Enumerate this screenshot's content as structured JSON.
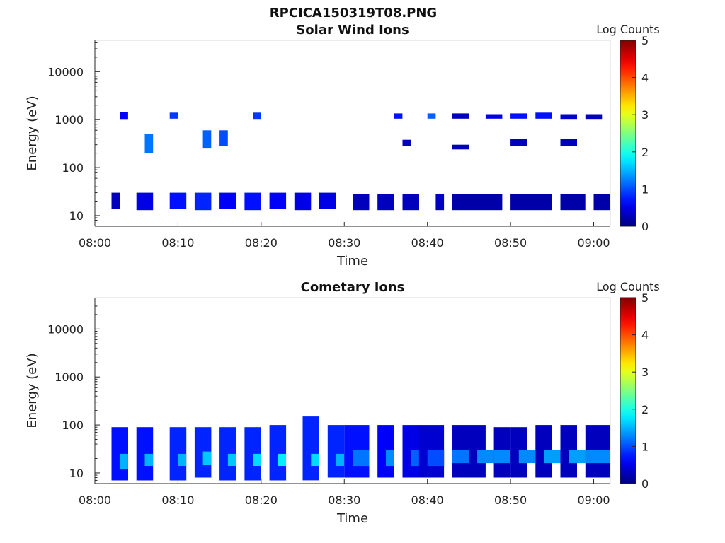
{
  "figure_title": "RPCICA150319T08.PNG",
  "colorbar": {
    "label": "Log Counts",
    "ticks": [
      "0",
      "1",
      "2",
      "3",
      "4",
      "5"
    ],
    "range": [
      0,
      5
    ],
    "colormap": "jet"
  },
  "chart_data": [
    {
      "type": "heatmap",
      "title": "Solar Wind Ions",
      "xlabel": "Time",
      "ylabel": "Energy (eV)",
      "x_scale": "linear",
      "y_scale": "log",
      "xlim": [
        "08:00",
        "09:02"
      ],
      "ylim": [
        6,
        45000
      ],
      "x_ticks": [
        "08:00",
        "08:10",
        "08:20",
        "08:30",
        "08:40",
        "08:50",
        "09:00"
      ],
      "y_ticks": [
        "10",
        "100",
        "1000",
        "10000"
      ],
      "color_scale": "Log Counts",
      "cells": [
        {
          "t0": "08:02",
          "t1": "08:03",
          "e0": 14,
          "e1": 30,
          "v": 0.3
        },
        {
          "t0": "08:03",
          "t1": "08:04",
          "e0": 1000,
          "e1": 1450,
          "v": 0.6
        },
        {
          "t0": "08:05",
          "t1": "08:07",
          "e0": 13,
          "e1": 30,
          "v": 0.5
        },
        {
          "t0": "08:06",
          "t1": "08:07",
          "e0": 200,
          "e1": 500,
          "v": 1.2
        },
        {
          "t0": "08:09",
          "t1": "08:11",
          "e0": 14,
          "e1": 30,
          "v": 0.7
        },
        {
          "t0": "08:09",
          "t1": "08:10",
          "e0": 1050,
          "e1": 1400,
          "v": 0.9
        },
        {
          "t0": "08:12",
          "t1": "08:14",
          "e0": 13,
          "e1": 30,
          "v": 0.8
        },
        {
          "t0": "08:13",
          "t1": "08:14",
          "e0": 250,
          "e1": 600,
          "v": 1.1
        },
        {
          "t0": "08:15",
          "t1": "08:17",
          "e0": 14,
          "e1": 30,
          "v": 0.6
        },
        {
          "t0": "08:15",
          "t1": "08:16",
          "e0": 280,
          "e1": 600,
          "v": 1.0
        },
        {
          "t0": "08:18",
          "t1": "08:20",
          "e0": 13,
          "e1": 30,
          "v": 0.7
        },
        {
          "t0": "08:19",
          "t1": "08:20",
          "e0": 1000,
          "e1": 1400,
          "v": 0.9
        },
        {
          "t0": "08:21",
          "t1": "08:23",
          "e0": 14,
          "e1": 30,
          "v": 0.6
        },
        {
          "t0": "08:24",
          "t1": "08:26",
          "e0": 13,
          "e1": 30,
          "v": 0.5
        },
        {
          "t0": "08:27",
          "t1": "08:29",
          "e0": 14,
          "e1": 30,
          "v": 0.5
        },
        {
          "t0": "08:31",
          "t1": "08:33",
          "e0": 13,
          "e1": 28,
          "v": 0.3
        },
        {
          "t0": "08:34",
          "t1": "08:36",
          "e0": 13,
          "e1": 28,
          "v": 0.3
        },
        {
          "t0": "08:36",
          "t1": "08:37",
          "e0": 1050,
          "e1": 1350,
          "v": 0.7
        },
        {
          "t0": "08:37",
          "t1": "08:38",
          "e0": 280,
          "e1": 380,
          "v": 0.3
        },
        {
          "t0": "08:37",
          "t1": "08:39",
          "e0": 13,
          "e1": 28,
          "v": 0.3
        },
        {
          "t0": "08:40",
          "t1": "08:41",
          "e0": 1050,
          "e1": 1350,
          "v": 1.1
        },
        {
          "t0": "08:41",
          "t1": "08:42",
          "e0": 13,
          "e1": 28,
          "v": 0.3
        },
        {
          "t0": "08:43",
          "t1": "08:45",
          "e0": 1050,
          "e1": 1350,
          "v": 0.3
        },
        {
          "t0": "08:43",
          "t1": "08:45",
          "e0": 240,
          "e1": 300,
          "v": 0.3
        },
        {
          "t0": "08:43",
          "t1": "08:49",
          "e0": 13,
          "e1": 28,
          "v": 0.2
        },
        {
          "t0": "08:47",
          "t1": "08:49",
          "e0": 1050,
          "e1": 1300,
          "v": 0.5
        },
        {
          "t0": "08:50",
          "t1": "08:52",
          "e0": 1050,
          "e1": 1350,
          "v": 0.7
        },
        {
          "t0": "08:50",
          "t1": "08:52",
          "e0": 280,
          "e1": 400,
          "v": 0.3
        },
        {
          "t0": "08:50",
          "t1": "08:55",
          "e0": 13,
          "e1": 28,
          "v": 0.2
        },
        {
          "t0": "08:53",
          "t1": "08:55",
          "e0": 1050,
          "e1": 1400,
          "v": 0.7
        },
        {
          "t0": "08:56",
          "t1": "08:58",
          "e0": 1000,
          "e1": 1300,
          "v": 0.4
        },
        {
          "t0": "08:56",
          "t1": "08:58",
          "e0": 280,
          "e1": 400,
          "v": 0.3
        },
        {
          "t0": "08:56",
          "t1": "08:59",
          "e0": 13,
          "e1": 28,
          "v": 0.2
        },
        {
          "t0": "08:59",
          "t1": "09:01",
          "e0": 1000,
          "e1": 1300,
          "v": 0.3
        },
        {
          "t0": "09:00",
          "t1": "09:02",
          "e0": 13,
          "e1": 28,
          "v": 0.2
        }
      ]
    },
    {
      "type": "heatmap",
      "title": "Cometary Ions",
      "xlabel": "Time",
      "ylabel": "Energy (eV)",
      "x_scale": "linear",
      "y_scale": "log",
      "xlim": [
        "08:00",
        "09:02"
      ],
      "ylim": [
        6,
        45000
      ],
      "x_ticks": [
        "08:00",
        "08:10",
        "08:20",
        "08:30",
        "08:40",
        "08:50",
        "09:00"
      ],
      "y_ticks": [
        "10",
        "100",
        "1000",
        "10000"
      ],
      "color_scale": "Log Counts",
      "cells": [
        {
          "t0": "08:02",
          "t1": "08:04",
          "e0": 7,
          "e1": 90,
          "v": 0.7
        },
        {
          "t0": "08:03",
          "t1": "08:04",
          "e0": 12,
          "e1": 25,
          "v": 1.5
        },
        {
          "t0": "08:05",
          "t1": "08:07",
          "e0": 7,
          "e1": 90,
          "v": 0.7
        },
        {
          "t0": "08:06",
          "t1": "08:07",
          "e0": 14,
          "e1": 25,
          "v": 1.5
        },
        {
          "t0": "08:09",
          "t1": "08:11",
          "e0": 7,
          "e1": 90,
          "v": 0.8
        },
        {
          "t0": "08:10",
          "t1": "08:11",
          "e0": 14,
          "e1": 25,
          "v": 1.5
        },
        {
          "t0": "08:12",
          "t1": "08:14",
          "e0": 8,
          "e1": 90,
          "v": 0.8
        },
        {
          "t0": "08:13",
          "t1": "08:14",
          "e0": 15,
          "e1": 28,
          "v": 1.6
        },
        {
          "t0": "08:15",
          "t1": "08:17",
          "e0": 7,
          "e1": 90,
          "v": 0.8
        },
        {
          "t0": "08:16",
          "t1": "08:17",
          "e0": 14,
          "e1": 25,
          "v": 1.6
        },
        {
          "t0": "08:18",
          "t1": "08:20",
          "e0": 7,
          "e1": 90,
          "v": 0.8
        },
        {
          "t0": "08:19",
          "t1": "08:20",
          "e0": 14,
          "e1": 25,
          "v": 1.7
        },
        {
          "t0": "08:21",
          "t1": "08:23",
          "e0": 7,
          "e1": 100,
          "v": 0.8
        },
        {
          "t0": "08:22",
          "t1": "08:23",
          "e0": 14,
          "e1": 25,
          "v": 1.8
        },
        {
          "t0": "08:25",
          "t1": "08:27",
          "e0": 7,
          "e1": 150,
          "v": 0.8
        },
        {
          "t0": "08:26",
          "t1": "08:27",
          "e0": 14,
          "e1": 25,
          "v": 1.7
        },
        {
          "t0": "08:28",
          "t1": "08:30",
          "e0": 8,
          "e1": 100,
          "v": 0.8
        },
        {
          "t0": "08:29",
          "t1": "08:30",
          "e0": 14,
          "e1": 25,
          "v": 1.5
        },
        {
          "t0": "08:30",
          "t1": "08:33",
          "e0": 8,
          "e1": 100,
          "v": 0.7
        },
        {
          "t0": "08:31",
          "t1": "08:33",
          "e0": 14,
          "e1": 30,
          "v": 1.2
        },
        {
          "t0": "08:34",
          "t1": "08:36",
          "e0": 8,
          "e1": 100,
          "v": 0.6
        },
        {
          "t0": "08:35",
          "t1": "08:36",
          "e0": 14,
          "e1": 30,
          "v": 1.3
        },
        {
          "t0": "08:37",
          "t1": "08:39",
          "e0": 8,
          "e1": 100,
          "v": 0.5
        },
        {
          "t0": "08:38",
          "t1": "08:39",
          "e0": 14,
          "e1": 30,
          "v": 1.1
        },
        {
          "t0": "08:39",
          "t1": "08:42",
          "e0": 8,
          "e1": 100,
          "v": 0.4
        },
        {
          "t0": "08:40",
          "t1": "08:42",
          "e0": 14,
          "e1": 30,
          "v": 1.0
        },
        {
          "t0": "08:43",
          "t1": "08:45",
          "e0": 8,
          "e1": 100,
          "v": 0.3
        },
        {
          "t0": "08:43",
          "t1": "08:45",
          "e0": 16,
          "e1": 30,
          "v": 1.2
        },
        {
          "t0": "08:45",
          "t1": "08:47",
          "e0": 8,
          "e1": 100,
          "v": 0.3
        },
        {
          "t0": "08:46",
          "t1": "08:48",
          "e0": 16,
          "e1": 30,
          "v": 1.3
        },
        {
          "t0": "08:48",
          "t1": "08:50",
          "e0": 8,
          "e1": 90,
          "v": 0.3
        },
        {
          "t0": "08:48",
          "t1": "08:50",
          "e0": 16,
          "e1": 30,
          "v": 1.3
        },
        {
          "t0": "08:50",
          "t1": "08:52",
          "e0": 8,
          "e1": 90,
          "v": 0.3
        },
        {
          "t0": "08:51",
          "t1": "08:53",
          "e0": 16,
          "e1": 30,
          "v": 1.3
        },
        {
          "t0": "08:53",
          "t1": "08:55",
          "e0": 8,
          "e1": 100,
          "v": 0.3
        },
        {
          "t0": "08:54",
          "t1": "08:56",
          "e0": 16,
          "e1": 30,
          "v": 1.4
        },
        {
          "t0": "08:56",
          "t1": "08:58",
          "e0": 8,
          "e1": 100,
          "v": 0.3
        },
        {
          "t0": "08:57",
          "t1": "08:59",
          "e0": 16,
          "e1": 30,
          "v": 1.4
        },
        {
          "t0": "08:59",
          "t1": "09:02",
          "e0": 8,
          "e1": 100,
          "v": 0.3
        },
        {
          "t0": "08:59",
          "t1": "09:02",
          "e0": 16,
          "e1": 30,
          "v": 1.3
        }
      ]
    }
  ]
}
